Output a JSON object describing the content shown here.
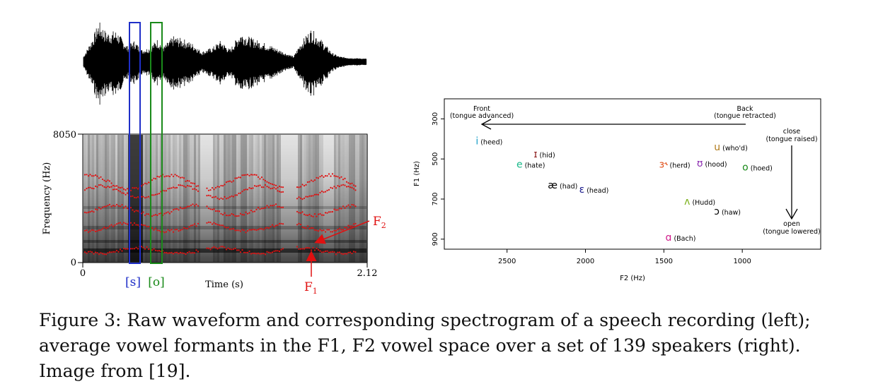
{
  "left_panel": {
    "y_axis_label": "Frequency (Hz)",
    "y_tick_top": "8050",
    "y_tick_bottom": "0",
    "x_tick_left": "0",
    "x_tick_right": "2.12",
    "x_axis_label": "Time (s)",
    "segment_s_label": "[s]",
    "segment_o_label": "[o]",
    "f1_label": "F",
    "f1_sub": "1",
    "f2_label": "F",
    "f2_sub": "2",
    "colors": {
      "s_box": "#1f2fc8",
      "o_box": "#1a8a1a",
      "formant": "#e01010"
    }
  },
  "chart_data": {
    "type": "scatter",
    "xlabel": "F2 (Hz)",
    "ylabel": "F1 (Hz)",
    "xlim": [
      2900,
      500
    ],
    "ylim": [
      200,
      950
    ],
    "x_ticks": [
      "2500",
      "2000",
      "1500",
      "1000"
    ],
    "y_ticks": [
      "300",
      "500",
      "700",
      "900"
    ],
    "points": [
      {
        "symbol": "i",
        "word": "(heed)",
        "F2": 2700,
        "F1": 410,
        "color": "#1a9ec8"
      },
      {
        "symbol": "ɪ",
        "word": "(hid)",
        "F2": 2330,
        "F1": 475,
        "color": "#8b1a1a"
      },
      {
        "symbol": "e",
        "word": "(hate)",
        "F2": 2440,
        "F1": 525,
        "color": "#1ab98a"
      },
      {
        "symbol": "ɜ˞",
        "word": "(herd)",
        "F2": 1530,
        "F1": 525,
        "color": "#e0501a"
      },
      {
        "symbol": "ʊ",
        "word": "(hood)",
        "F2": 1290,
        "F1": 520,
        "color": "#8b2ab0"
      },
      {
        "symbol": "u",
        "word": "(who'd)",
        "F2": 1180,
        "F1": 440,
        "color": "#b07a1a"
      },
      {
        "symbol": "o",
        "word": "(hoed)",
        "F2": 1000,
        "F1": 540,
        "color": "#1a8a1a"
      },
      {
        "symbol": "æ",
        "word": "(had)",
        "F2": 2240,
        "F1": 630,
        "color": "#000000"
      },
      {
        "symbol": "ɛ",
        "word": "(head)",
        "F2": 2040,
        "F1": 650,
        "color": "#1a1a8b"
      },
      {
        "symbol": "ʌ",
        "word": "(Hudd)",
        "F2": 1370,
        "F1": 710,
        "color": "#7ab01a"
      },
      {
        "symbol": "ɔ",
        "word": "(haw)",
        "F2": 1180,
        "F1": 760,
        "color": "#000000"
      },
      {
        "symbol": "ɑ",
        "word": "(Bach)",
        "F2": 1490,
        "F1": 890,
        "color": "#d01a8a"
      }
    ],
    "annotations": {
      "front_line1": "Front",
      "front_line2": "(tongue advanced)",
      "back_line1": "Back",
      "back_line2": "(tongue retracted)",
      "close_line1": "close",
      "close_line2": "(tongue raised)",
      "open_line1": "open",
      "open_line2": "(tongue lowered)"
    }
  },
  "caption": "Figure 3: Raw waveform and corresponding spectrogram of a speech recording (left); average vowel formants in the F1, F2 vowel space over a set of 139 speakers (right). Image from [19]."
}
